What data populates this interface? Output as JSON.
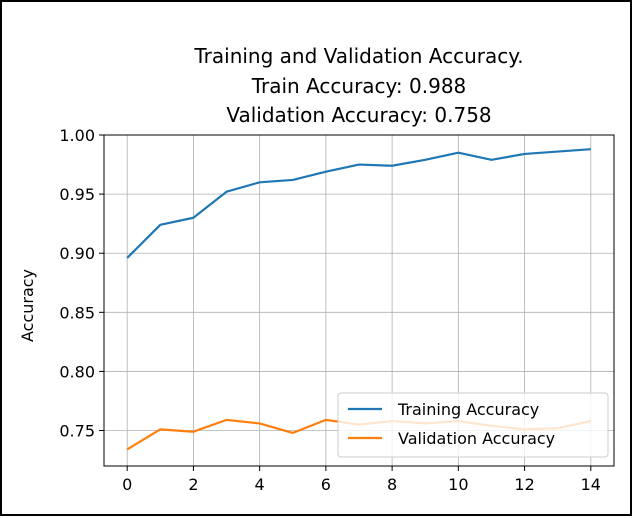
{
  "chart_data": {
    "type": "line",
    "title": [
      "Training and Validation Accuracy.",
      "Train Accuracy: 0.988",
      "Validation Accuracy: 0.758"
    ],
    "xlabel": "",
    "ylabel": "Accuracy",
    "xlim": [
      -0.7,
      14.7
    ],
    "ylim": [
      0.72,
      1.0
    ],
    "x": [
      0,
      1,
      2,
      3,
      4,
      5,
      6,
      7,
      8,
      9,
      10,
      11,
      12,
      13,
      14
    ],
    "xticks": [
      0,
      2,
      4,
      6,
      8,
      10,
      12,
      14
    ],
    "xtick_labels": [
      "0",
      "2",
      "4",
      "6",
      "8",
      "10",
      "12",
      "14"
    ],
    "yticks": [
      0.75,
      0.8,
      0.85,
      0.9,
      0.95,
      1.0
    ],
    "ytick_labels": [
      "0.75",
      "0.80",
      "0.85",
      "0.90",
      "0.95",
      "1.00"
    ],
    "grid": true,
    "legend_position": "lower-right",
    "series": [
      {
        "name": "Training Accuracy",
        "color": "#1f77b4",
        "values": [
          0.896,
          0.924,
          0.93,
          0.952,
          0.96,
          0.962,
          0.969,
          0.975,
          0.974,
          0.979,
          0.985,
          0.979,
          0.984,
          0.986,
          0.988
        ]
      },
      {
        "name": "Validation Accuracy",
        "color": "#ff7f0e",
        "values": [
          0.734,
          0.751,
          0.749,
          0.759,
          0.756,
          0.748,
          0.759,
          0.755,
          0.758,
          0.756,
          0.758,
          0.754,
          0.751,
          0.752,
          0.758
        ]
      }
    ]
  }
}
